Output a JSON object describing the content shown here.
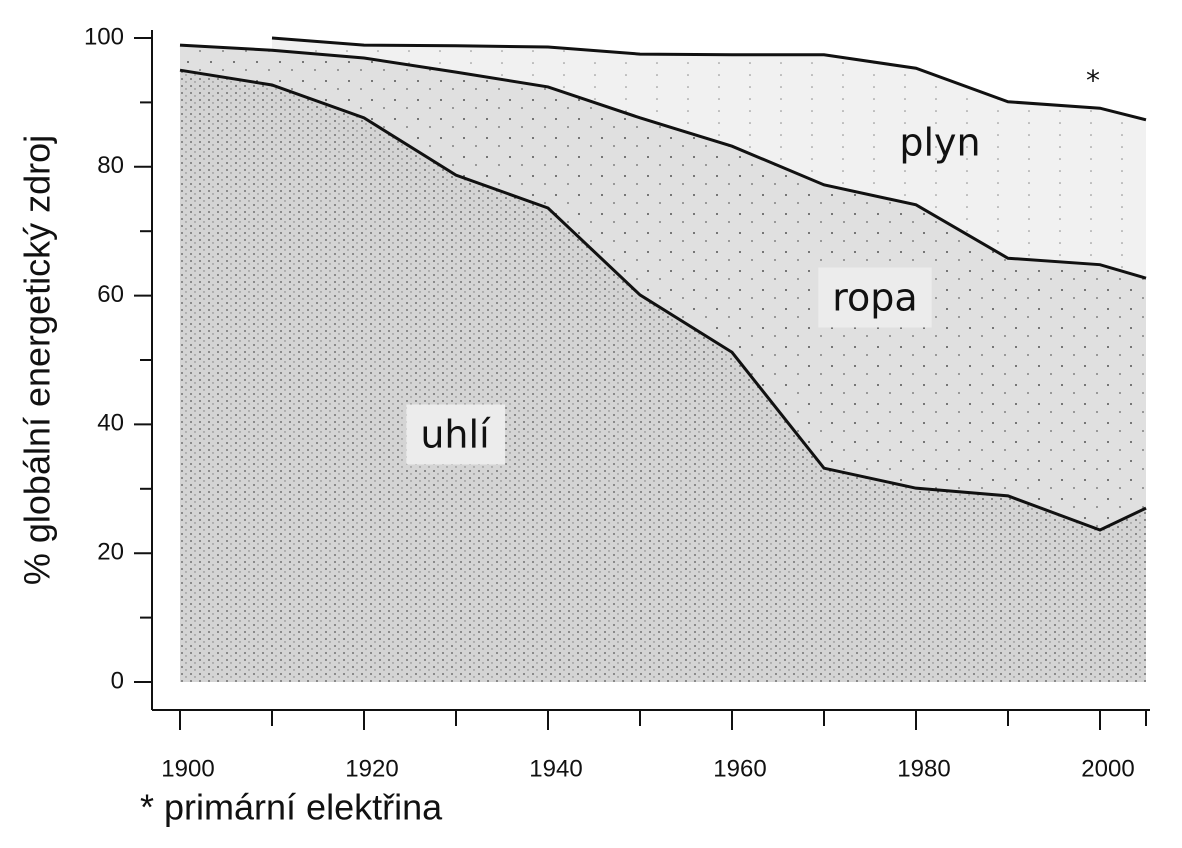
{
  "chart_data": {
    "type": "stacked-area",
    "ylabel": "% globální energetický zdroj",
    "x": [
      1900,
      1910,
      1920,
      1930,
      1940,
      1950,
      1960,
      1970,
      1980,
      1990,
      2000,
      2005
    ],
    "series": [
      {
        "name": "uhlí",
        "color": "#d4d4d4",
        "values": [
          95,
          92.7,
          87.6,
          78.7,
          73.6,
          60.1,
          51.2,
          33.2,
          30.1,
          28.9,
          23.6,
          27.0
        ]
      },
      {
        "name": "ropa",
        "color": "#e0e0e0",
        "values": [
          3.9,
          5.4,
          9.3,
          16.0,
          18.8,
          27.5,
          32.0,
          44.0,
          44.0,
          36.9,
          41.2,
          35.7
        ]
      },
      {
        "name": "plyn",
        "color": "#f1f1f1",
        "values": [
          null,
          1.9,
          2.0,
          4.1,
          6.2,
          9.9,
          14.2,
          20.2,
          21.2,
          24.3,
          24.3,
          24.6
        ]
      },
      {
        "name": "*",
        "color": "#ffffff",
        "values": [
          null,
          0,
          1.1,
          1.2,
          1.4,
          2.5,
          2.6,
          2.6,
          4.7,
          9.9,
          10.9,
          12.7
        ]
      }
    ],
    "xlim": [
      1900,
      2005
    ],
    "xticks": [
      1900,
      1920,
      1940,
      1960,
      1980,
      2000
    ],
    "xminor_ticks": [
      1910,
      1930,
      1950,
      1970,
      1990,
      2005
    ],
    "ylim": [
      0,
      100
    ],
    "yticks": [
      0,
      20,
      40,
      60,
      80,
      100
    ],
    "yminor_ticks": [
      10,
      30,
      50,
      70,
      90
    ],
    "footnote": "* primární elektřina"
  }
}
